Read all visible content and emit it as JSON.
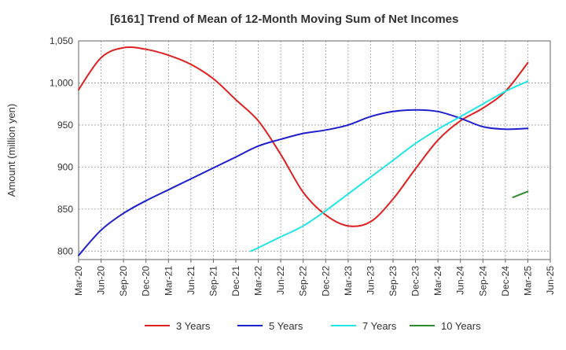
{
  "chart_data": {
    "type": "line",
    "title": "[6161]  Trend of Mean of 12-Month Moving Sum of Net Incomes",
    "ylabel": "Amount (million yen)",
    "xlabel": "",
    "ylim": [
      790,
      1050
    ],
    "yticks": [
      800,
      850,
      900,
      950,
      1000,
      1050
    ],
    "ytick_labels": [
      "800",
      "850",
      "900",
      "950",
      "1,000",
      "1,050"
    ],
    "xticks": [
      "Mar-20",
      "Jun-20",
      "Sep-20",
      "Dec-20",
      "Mar-21",
      "Jun-21",
      "Sep-21",
      "Dec-21",
      "Mar-22",
      "Jun-22",
      "Sep-22",
      "Dec-22",
      "Mar-23",
      "Jun-23",
      "Sep-23",
      "Dec-23",
      "Mar-24",
      "Jun-24",
      "Sep-24",
      "Dec-24",
      "Mar-25",
      "Jun-25"
    ],
    "grid": true,
    "legend_position": "bottom",
    "series": [
      {
        "name": "3 Years",
        "color": "#e02020",
        "points": [
          [
            "Mar-20",
            992
          ],
          [
            "Jun-20",
            1030
          ],
          [
            "Sep-20",
            1042
          ],
          [
            "Dec-20",
            1040
          ],
          [
            "Mar-21",
            1033
          ],
          [
            "Jun-21",
            1022
          ],
          [
            "Sep-21",
            1005
          ],
          [
            "Dec-21",
            980
          ],
          [
            "Mar-22",
            955
          ],
          [
            "Jun-22",
            915
          ],
          [
            "Sep-22",
            870
          ],
          [
            "Dec-22",
            843
          ],
          [
            "Mar-23",
            830
          ],
          [
            "Jun-23",
            835
          ],
          [
            "Sep-23",
            862
          ],
          [
            "Dec-23",
            898
          ],
          [
            "Mar-24",
            932
          ],
          [
            "Jun-24",
            955
          ],
          [
            "Sep-24",
            970
          ],
          [
            "Dec-24",
            990
          ],
          [
            "Mar-25",
            1024
          ]
        ]
      },
      {
        "name": "5 Years",
        "color": "#1f1fd0",
        "points": [
          [
            "Mar-20",
            795
          ],
          [
            "Jun-20",
            825
          ],
          [
            "Sep-20",
            845
          ],
          [
            "Dec-20",
            860
          ],
          [
            "Mar-21",
            873
          ],
          [
            "Jun-21",
            886
          ],
          [
            "Sep-21",
            899
          ],
          [
            "Dec-21",
            912
          ],
          [
            "Mar-22",
            925
          ],
          [
            "Jun-22",
            933
          ],
          [
            "Sep-22",
            940
          ],
          [
            "Dec-22",
            944
          ],
          [
            "Mar-23",
            950
          ],
          [
            "Jun-23",
            960
          ],
          [
            "Sep-23",
            966
          ],
          [
            "Dec-23",
            968
          ],
          [
            "Mar-24",
            966
          ],
          [
            "Jun-24",
            958
          ],
          [
            "Sep-24",
            948
          ],
          [
            "Dec-24",
            945
          ],
          [
            "Mar-25",
            946
          ]
        ]
      },
      {
        "name": "7 Years",
        "color": "#22e6e6",
        "points": [
          [
            "Feb-22",
            800
          ],
          [
            "Mar-22",
            804
          ],
          [
            "Jun-22",
            817
          ],
          [
            "Sep-22",
            830
          ],
          [
            "Dec-22",
            848
          ],
          [
            "Mar-23",
            868
          ],
          [
            "Jun-23",
            888
          ],
          [
            "Sep-23",
            908
          ],
          [
            "Dec-23",
            928
          ],
          [
            "Mar-24",
            945
          ],
          [
            "Jun-24",
            960
          ],
          [
            "Sep-24",
            975
          ],
          [
            "Dec-24",
            990
          ],
          [
            "Mar-25",
            1002
          ]
        ]
      },
      {
        "name": "10 Years",
        "color": "#2e8b2e",
        "points": [
          [
            "Jan-25",
            864
          ],
          [
            "Mar-25",
            871
          ]
        ]
      }
    ]
  }
}
